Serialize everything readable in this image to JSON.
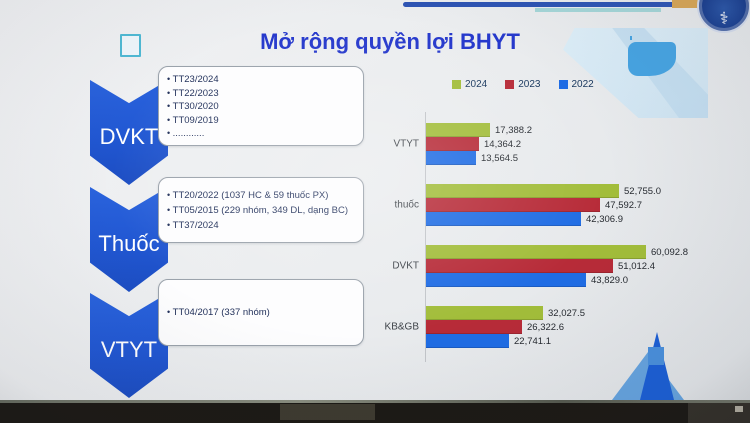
{
  "title": "Mở rộng quyền lợi BHYT",
  "logo": {
    "name": "ministry-of-health-seal",
    "symbol": "⚕"
  },
  "process": {
    "steps": [
      {
        "label": "DVKT",
        "bullets": [
          "TT23/2024",
          "TT22/2023",
          "TT30/2020",
          "TT09/2019",
          "............"
        ]
      },
      {
        "label": "Thuốc",
        "bullets": [
          "TT20/2022 (1037 HC & 59 thuốc PX)",
          "TT05/2015 (229 nhóm, 349 DL, dạng BC)",
          "TT37/2024"
        ]
      },
      {
        "label": "VTYT",
        "bullets": [
          "TT04/2017 (337 nhóm)"
        ]
      }
    ]
  },
  "chart_data": {
    "type": "bar",
    "orientation": "horizontal",
    "categories": [
      "VTYT",
      "thuốc",
      "DVKT",
      "KB&GB"
    ],
    "series": [
      {
        "name": "2024",
        "color": "#a2bd3a",
        "values": [
          17388.2,
          52755.0,
          60092.8,
          32027.5
        ],
        "labels": [
          "17,388.2",
          "52,755.0",
          "60,092.8",
          "32,027.5"
        ]
      },
      {
        "name": "2023",
        "color": "#b72b38",
        "values": [
          14364.2,
          47592.7,
          51012.4,
          26322.6
        ],
        "labels": [
          "14,364.2",
          "47,592.7",
          "51,012.4",
          "26,322.6"
        ]
      },
      {
        "name": "2022",
        "color": "#1f6ce4",
        "values": [
          13564.5,
          42306.9,
          43829.0,
          22741.1
        ],
        "labels": [
          "13,564.5",
          "42,306.9",
          "43,829.0",
          "22,741.1"
        ]
      }
    ],
    "xlim": [
      0,
      65000
    ],
    "legend_position": "top-right",
    "value_labels": true,
    "grid": false
  },
  "colors": {
    "title_blue": "#2639cc",
    "chevron_blue": "#2157d2",
    "checkbox_teal": "#4fb9d4",
    "strip_blue": "#2e55b4",
    "strip_gold": "#d8a757",
    "strip_teal": "#a5d6d8"
  }
}
